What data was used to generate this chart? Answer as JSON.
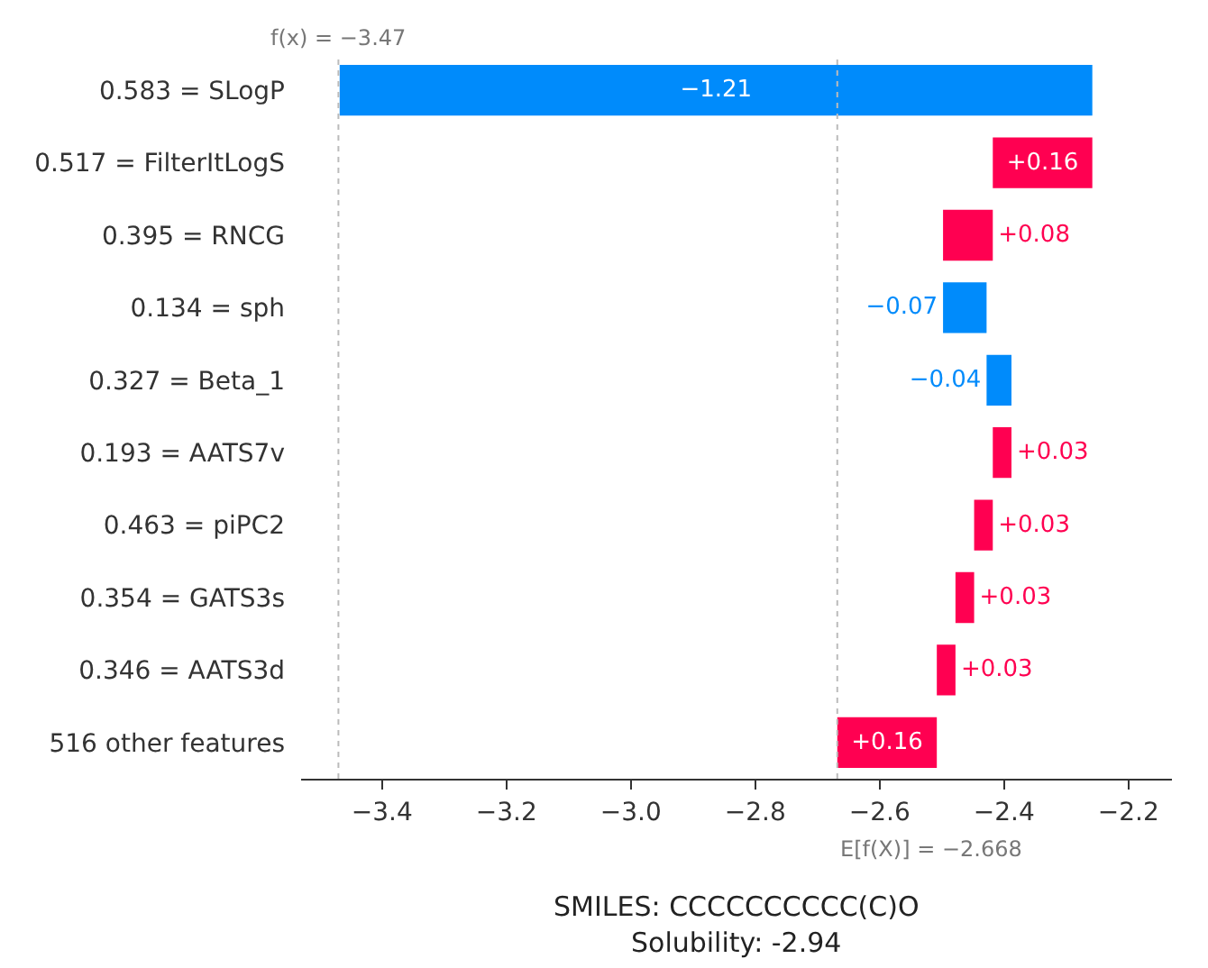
{
  "chart_data": {
    "type": "bar",
    "orientation": "horizontal",
    "categories": [
      "0.583 = SLogP",
      "0.517 = FilterItLogS",
      "0.395 = RNCG",
      "0.134 = sph",
      "0.327 = Beta_1",
      "0.193 = AATS7v",
      "0.463 = piPC2",
      "0.354 = GATS3s",
      "0.346 = AATS3d",
      "516 other features"
    ],
    "values": [
      -1.21,
      0.16,
      0.08,
      -0.07,
      -0.04,
      0.03,
      0.03,
      0.03,
      0.03,
      0.16
    ],
    "base": [
      -2.258,
      -2.418,
      -2.498,
      -2.428,
      -2.388,
      -2.418,
      -2.448,
      -2.478,
      -2.508,
      -2.668
    ],
    "colors": [
      "#008bfb",
      "#ff0051",
      "#ff0051",
      "#008bfb",
      "#008bfb",
      "#ff0051",
      "#ff0051",
      "#ff0051",
      "#ff0051",
      "#ff0051"
    ],
    "value_labels": [
      "−1.21",
      "+0.16",
      "+0.08",
      "−0.07",
      "−0.04",
      "+0.03",
      "+0.03",
      "+0.03",
      "+0.03",
      "+0.16"
    ],
    "xlim": [
      -3.53,
      -2.13
    ],
    "xticks": [
      {
        "value": -3.4,
        "label": "−3.4"
      },
      {
        "value": -3.2,
        "label": "−3.2"
      },
      {
        "value": -3.0,
        "label": "−3.0"
      },
      {
        "value": -2.8,
        "label": "−2.8"
      },
      {
        "value": -2.6,
        "label": "−2.6"
      },
      {
        "value": -2.4,
        "label": "−2.4"
      },
      {
        "value": -2.2,
        "label": "−2.2"
      }
    ],
    "ref_lines": [
      {
        "axis": "x",
        "value": -3.47,
        "label": "f(x) = −3.47",
        "color": "#bbbbbb",
        "line_style": "dotted"
      },
      {
        "axis": "x",
        "value": -2.668,
        "label": "E[f(X)] = −2.668",
        "color": "#bbbbbb",
        "line_style": "dotted"
      }
    ],
    "annotations": [
      "SMILES: CCCCCCCCCC(C)O",
      "Solubility: -2.94"
    ],
    "grid": false
  }
}
